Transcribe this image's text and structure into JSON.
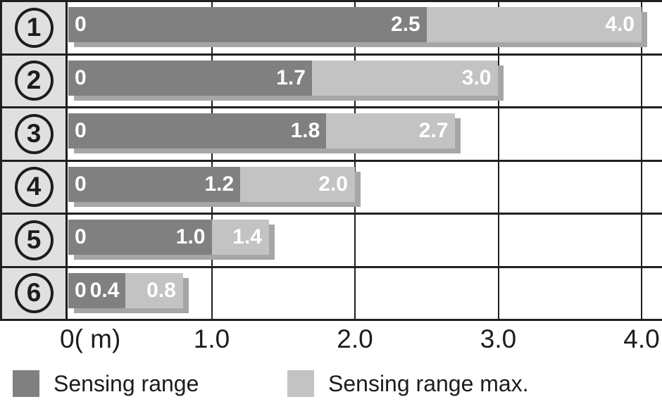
{
  "chart_data": {
    "type": "bar",
    "orientation": "horizontal",
    "unit": "m",
    "x_axis": {
      "min": 0,
      "max": 4.0,
      "ticks": [
        {
          "value": 0,
          "label": "0( m)"
        },
        {
          "value": 1.0,
          "label": "1.0"
        },
        {
          "value": 2.0,
          "label": "2.0"
        },
        {
          "value": 3.0,
          "label": "3.0"
        },
        {
          "value": 4.0,
          "label": "4.0"
        }
      ],
      "gridlines_at": [
        1.0,
        2.0,
        3.0,
        4.0
      ],
      "grid": true
    },
    "rows": [
      {
        "number": "1",
        "zero_label": "0",
        "sensing_range": 2.5,
        "sensing_range_label": "2.5",
        "sensing_range_max": 4.0,
        "sensing_range_max_label": "4.0"
      },
      {
        "number": "2",
        "zero_label": "0",
        "sensing_range": 1.7,
        "sensing_range_label": "1.7",
        "sensing_range_max": 3.0,
        "sensing_range_max_label": "3.0"
      },
      {
        "number": "3",
        "zero_label": "0",
        "sensing_range": 1.8,
        "sensing_range_label": "1.8",
        "sensing_range_max": 2.7,
        "sensing_range_max_label": "2.7"
      },
      {
        "number": "4",
        "zero_label": "0",
        "sensing_range": 1.2,
        "sensing_range_label": "1.2",
        "sensing_range_max": 2.0,
        "sensing_range_max_label": "2.0"
      },
      {
        "number": "5",
        "zero_label": "0",
        "sensing_range": 1.0,
        "sensing_range_label": "1.0",
        "sensing_range_max": 1.4,
        "sensing_range_max_label": "1.4"
      },
      {
        "number": "6",
        "zero_label": "0",
        "sensing_range": 0.4,
        "sensing_range_label": "0.4",
        "sensing_range_max": 0.8,
        "sensing_range_max_label": "0.8"
      }
    ],
    "series": [
      {
        "name": "Sensing range",
        "values": [
          2.5,
          1.7,
          1.8,
          1.2,
          1.0,
          0.4
        ]
      },
      {
        "name": "Sensing range max.",
        "values": [
          4.0,
          3.0,
          2.7,
          2.0,
          1.4,
          0.8
        ]
      }
    ],
    "legend": [
      {
        "label": "Sensing range",
        "swatch": "dark"
      },
      {
        "label": "Sensing range max.",
        "swatch": "light"
      }
    ],
    "legend_position": "bottom"
  },
  "colors": {
    "bar_dark": "#808080",
    "bar_light": "#c3c3c3",
    "bar_shadow": "#a6a6a6",
    "row_label_bg": "#e0e0e0",
    "grid_line": "#1f1f1f",
    "bar_value_text": "#ffffff",
    "axis_text": "#1c1c1c"
  }
}
